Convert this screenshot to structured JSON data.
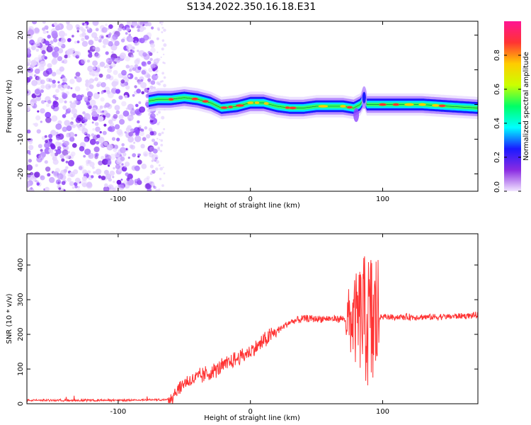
{
  "title": "S134.2022.350.16.18.E31",
  "chart_data": [
    {
      "type": "heatmap",
      "xlabel": "Height of straight line (km)",
      "ylabel": "Frequency (Hz)",
      "xlim": [
        -169,
        172
      ],
      "ylim": [
        -25,
        24
      ],
      "xticks": [
        -100,
        0,
        100
      ],
      "yticks": [
        -20,
        -10,
        0,
        10,
        20
      ],
      "colorbar": {
        "label": "Normalized spectral amplitude",
        "range": [
          0,
          1
        ],
        "ticks": [
          "0.0",
          "0.2",
          "0.4",
          "0.6",
          "0.8"
        ],
        "colors": [
          "#f2e6ff",
          "#8a2be2",
          "#1a1aff",
          "#00ffff",
          "#00ff66",
          "#ccff00",
          "#ffcc00",
          "#ff3333",
          "#ff1493"
        ]
      },
      "noise_region_x": [
        -169,
        -71
      ],
      "ridge": {
        "x": [
          -77,
          -70,
          -60,
          -50,
          -40,
          -30,
          -22,
          -10,
          0,
          10,
          20,
          30,
          40,
          50,
          60,
          70,
          78,
          83,
          86,
          88,
          95,
          110,
          130,
          150,
          172
        ],
        "freq": [
          1,
          1.5,
          1.5,
          2,
          1.5,
          0.5,
          -1,
          -0.5,
          0.5,
          0.5,
          -0.5,
          -1,
          -1,
          -0.5,
          -0.5,
          -0.5,
          -1,
          0,
          2,
          0,
          0,
          0,
          0,
          -0.5,
          -1
        ]
      }
    },
    {
      "type": "line",
      "xlabel": "Height of straight line (km)",
      "ylabel": "SNR (10 * v/v)",
      "xlim": [
        -169,
        172
      ],
      "ylim": [
        0,
        490
      ],
      "xticks": [
        -100,
        0,
        100
      ],
      "yticks": [
        0,
        100,
        200,
        300,
        400
      ],
      "series": [
        {
          "color": "#ff3333",
          "x": [
            -169,
            -100,
            -63,
            -60,
            -50,
            -40,
            -30,
            -20,
            -10,
            0,
            10,
            20,
            30,
            40,
            50,
            60,
            70,
            75,
            80,
            85,
            90,
            93,
            95,
            100,
            120,
            140,
            172
          ],
          "values": [
            10,
            10,
            12,
            20,
            60,
            75,
            90,
            110,
            130,
            150,
            180,
            210,
            235,
            245,
            245,
            245,
            245,
            240,
            240,
            250,
            230,
            220,
            250,
            250,
            250,
            250,
            255
          ]
        }
      ]
    }
  ]
}
